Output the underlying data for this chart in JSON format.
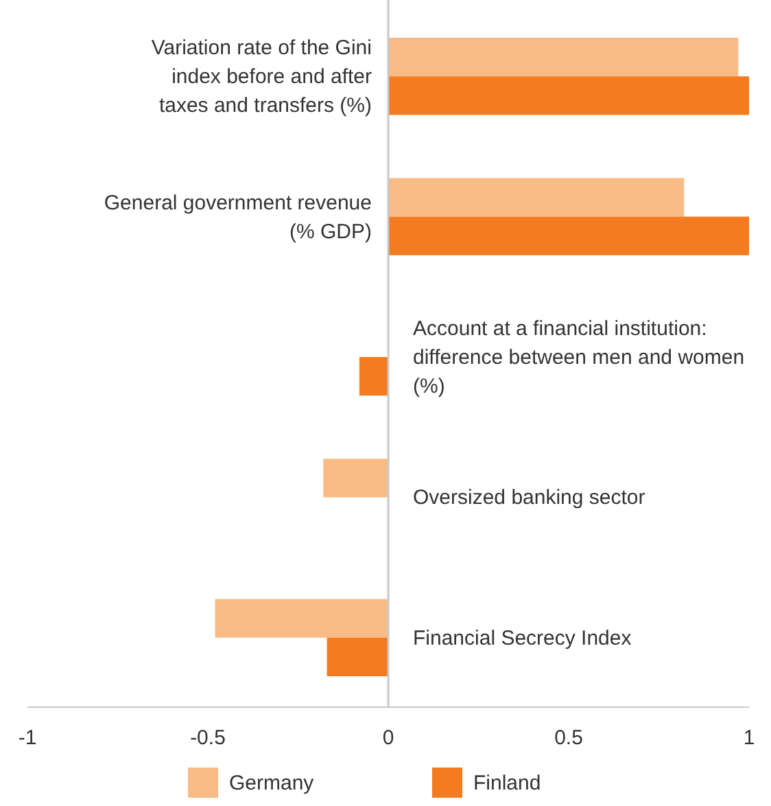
{
  "chart_data": {
    "type": "bar",
    "orientation": "horizontal",
    "categories": [
      "Variation rate of the Gini index before and after taxes and transfers (%)",
      "General government revenue (% GDP)",
      "Account at a financial institution: difference between men and women (%)",
      "Oversized banking sector",
      "Financial Secrecy Index"
    ],
    "series": [
      {
        "name": "Germany",
        "color": "#f9bb85",
        "values": [
          0.97,
          0.82,
          null,
          -0.18,
          -0.48
        ]
      },
      {
        "name": "Finland",
        "color": "#f47b20",
        "values": [
          1,
          1,
          -0.08,
          null,
          -0.17
        ]
      }
    ],
    "xlim": [
      -1,
      1
    ],
    "xticks": [
      -1,
      -0.5,
      0,
      0.5,
      1
    ],
    "grid": false,
    "legend": "bottom"
  }
}
